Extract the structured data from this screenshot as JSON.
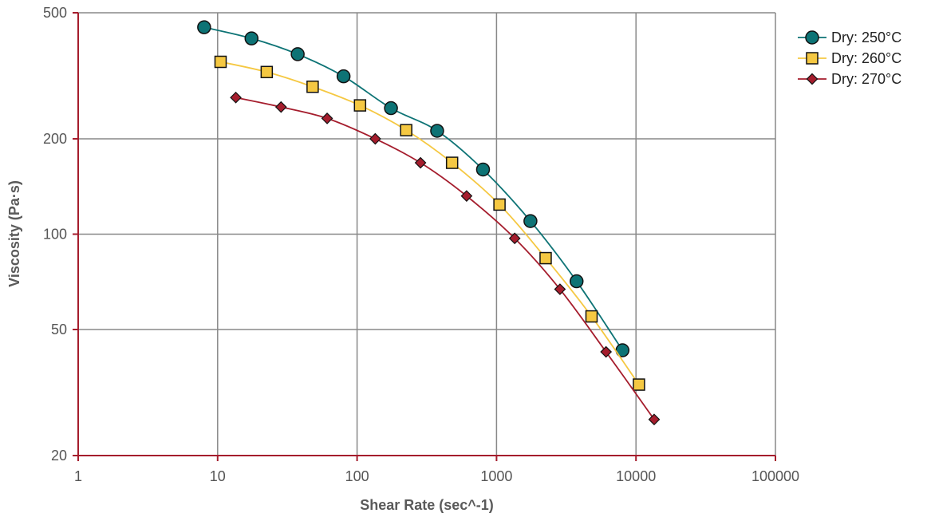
{
  "chart_data": {
    "type": "line",
    "title": "",
    "xlabel": "Shear Rate (sec^-1)",
    "ylabel": "Viscosity (Pa·s)",
    "x_scale": "log",
    "y_scale": "log",
    "xlim": [
      1,
      100000
    ],
    "ylim": [
      20,
      500
    ],
    "x_ticks": [
      1,
      10,
      100,
      1000,
      10000,
      100000
    ],
    "x_tick_labels": [
      "1",
      "10",
      "100",
      "1000",
      "10000",
      "100000"
    ],
    "y_ticks": [
      20,
      50,
      100,
      200,
      500
    ],
    "y_tick_labels": [
      "20",
      "50",
      "100",
      "200",
      "500"
    ],
    "grid": true,
    "legend_position": "top-right, outside plot",
    "colors": {
      "axis": "#a51d2d",
      "grid": "#888888"
    },
    "series": [
      {
        "name": "Dry: 250°C",
        "color": "#0d7375",
        "marker": "circle",
        "x": [
          8,
          17.5,
          37.5,
          80,
          175,
          375,
          800,
          1750,
          3750,
          8000
        ],
        "y": [
          450,
          415,
          370,
          315,
          250,
          212,
          160,
          110,
          71,
          43
        ]
      },
      {
        "name": "Dry: 260°C",
        "color": "#f5c842",
        "marker": "square",
        "x": [
          10.5,
          22.5,
          48,
          105,
          225,
          480,
          1050,
          2250,
          4800,
          10500
        ],
        "y": [
          350,
          325,
          292,
          255,
          213,
          168,
          124,
          84,
          55,
          33.5
        ]
      },
      {
        "name": "Dry: 270°C",
        "color": "#a51d2d",
        "marker": "diamond",
        "x": [
          13.5,
          28.5,
          61,
          135,
          285,
          610,
          1350,
          2850,
          6100,
          13500
        ],
        "y": [
          270,
          252,
          232,
          200,
          168,
          132,
          97,
          67,
          42.5,
          26
        ]
      }
    ]
  }
}
